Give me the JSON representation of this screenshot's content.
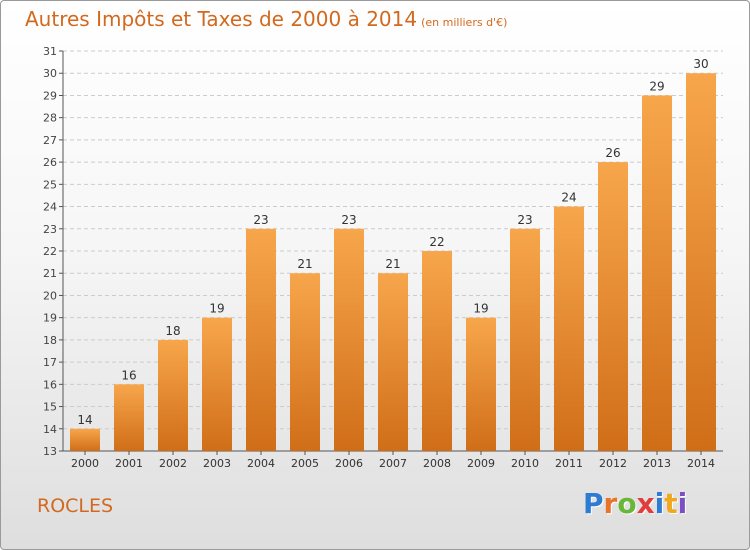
{
  "title": "Autres Impôts et Taxes de 2000 à 2014",
  "title_unit": "(en milliers d'€)",
  "place": "ROCLES",
  "logo": {
    "text": "Proxiti",
    "letter_colors": [
      "#2e7bd3",
      "#e8732a",
      "#6ab63a",
      "#e23d3d",
      "#2e7bd3",
      "#f0a81e",
      "#7c4ec4"
    ]
  },
  "colors": {
    "bar_light": "#f7a64c",
    "bar_dark": "#d06e18",
    "accent": "#d2691e",
    "axis": "#555555",
    "grid": "#cccccc"
  },
  "chart_data": {
    "type": "bar",
    "categories": [
      "2000",
      "2001",
      "2002",
      "2003",
      "2004",
      "2005",
      "2006",
      "2007",
      "2008",
      "2009",
      "2010",
      "2011",
      "2012",
      "2013",
      "2014"
    ],
    "values": [
      14,
      16,
      18,
      19,
      23,
      21,
      23,
      21,
      22,
      19,
      23,
      24,
      26,
      29,
      30
    ],
    "ylim": [
      13,
      31
    ],
    "yticks": [
      13,
      14,
      15,
      16,
      17,
      18,
      19,
      20,
      21,
      22,
      23,
      24,
      25,
      26,
      27,
      28,
      29,
      30,
      31
    ],
    "grid": true,
    "data_labels": true
  }
}
